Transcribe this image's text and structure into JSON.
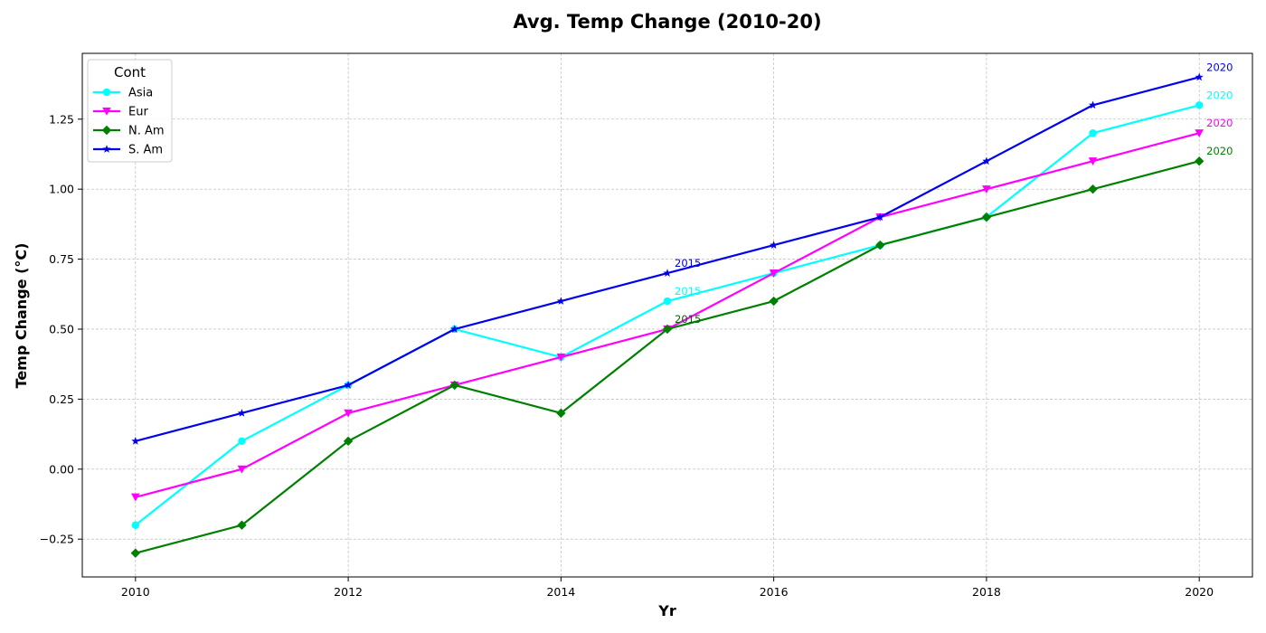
{
  "chart_data": {
    "type": "line",
    "title": "Avg. Temp Change (2010-20)",
    "xlabel": "Yr",
    "ylabel": "Temp Change (°C)",
    "x": [
      2010,
      2011,
      2012,
      2013,
      2014,
      2015,
      2016,
      2017,
      2018,
      2019,
      2020
    ],
    "xlim": [
      2009.5,
      2020.5
    ],
    "ylim": [
      -0.385,
      1.485
    ],
    "xticks": [
      2010,
      2012,
      2014,
      2016,
      2018,
      2020
    ],
    "yticks": [
      -0.25,
      0,
      0.25,
      0.5,
      0.75,
      1.0,
      1.25
    ],
    "ytick_labels": [
      "−0.25",
      "0.00",
      "0.25",
      "0.50",
      "0.75",
      "1.00",
      "1.25"
    ],
    "grid": true,
    "legend": {
      "title": "Cont",
      "placement": "top-left"
    },
    "series": [
      {
        "name": "Asia",
        "color": "#00ffff",
        "marker": "circle",
        "values": [
          -0.2,
          0.1,
          0.3,
          0.5,
          0.4,
          0.6,
          0.7,
          0.8,
          0.9,
          1.2,
          1.3
        ]
      },
      {
        "name": "Eur",
        "color": "#ff00ff",
        "marker": "triangle-down",
        "values": [
          -0.1,
          0.0,
          0.2,
          0.3,
          0.4,
          0.5,
          0.7,
          0.9,
          1.0,
          1.1,
          1.2
        ]
      },
      {
        "name": "N. Am",
        "color": "#008000",
        "marker": "diamond",
        "values": [
          -0.3,
          -0.2,
          0.1,
          0.3,
          0.2,
          0.5,
          0.6,
          0.8,
          0.9,
          1.0,
          1.1
        ]
      },
      {
        "name": "S. Am",
        "color": "#0000ee",
        "marker": "star",
        "values": [
          0.1,
          0.2,
          0.3,
          0.5,
          0.6,
          0.7,
          0.8,
          0.9,
          1.1,
          1.3,
          1.4
        ]
      }
    ],
    "annotations": [
      {
        "text": "2015",
        "x": 2015,
        "y": 0.7,
        "series": "S. Am",
        "color": "#0000ee"
      },
      {
        "text": "2015",
        "x": 2015,
        "y": 0.6,
        "series": "Asia",
        "color": "#00ffff"
      },
      {
        "text": "2015",
        "x": 2015,
        "y": 0.5,
        "series": "N. Am",
        "color": "#006400"
      },
      {
        "text": "2020",
        "x": 2020,
        "y": 1.4,
        "series": "S. Am",
        "color": "#0000ee"
      },
      {
        "text": "2020",
        "x": 2020,
        "y": 1.3,
        "series": "Asia",
        "color": "#00ffff"
      },
      {
        "text": "2020",
        "x": 2020,
        "y": 1.2,
        "series": "Eur",
        "color": "#ff00ff"
      },
      {
        "text": "2020",
        "x": 2020,
        "y": 1.1,
        "series": "N. Am",
        "color": "#008000"
      }
    ]
  }
}
